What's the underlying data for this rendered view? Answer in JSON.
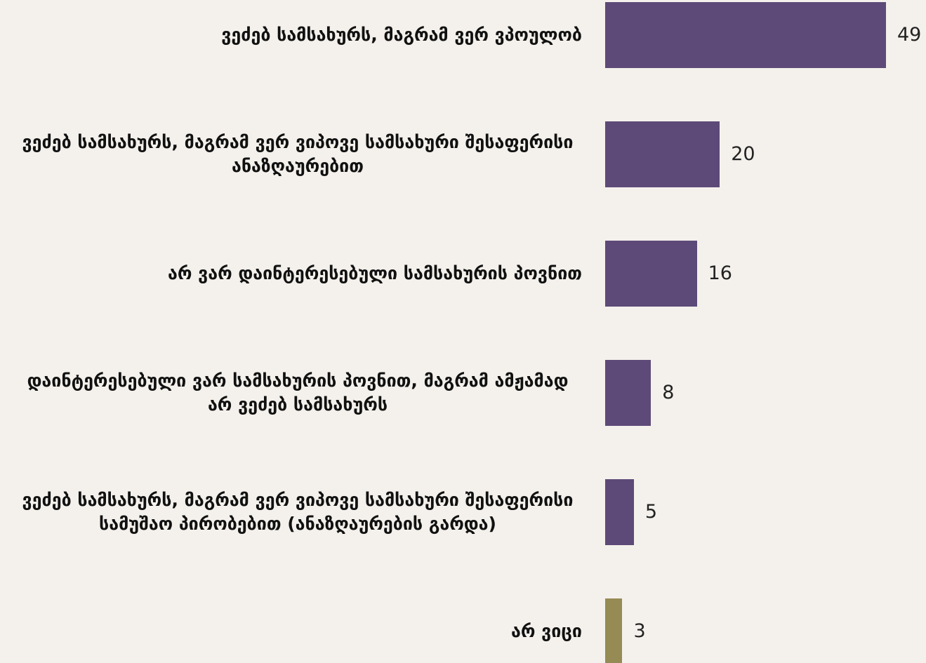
{
  "chart_data": {
    "type": "bar",
    "orientation": "horizontal",
    "categories": [
      "ვეძებ სამსახურს, მაგრამ ვერ ვპოულობ",
      "ვეძებ სამსახურს, მაგრამ ვერ ვიპოვე სამსახური შესაფერისი ანაზღაურებით",
      "არ ვარ დაინტერესებული სამსახურის პოვნით",
      "დაინტერესებული ვარ სამსახურის პოვნით, მაგრამ ამჟამად არ ვეძებ სამსახურს",
      "ვეძებ სამსახურს, მაგრამ ვერ ვიპოვე სამსახური შესაფერისი სამუშაო პირობებით (ანაზღაურების გარდა)",
      "არ ვიცი"
    ],
    "values": [
      49,
      20,
      16,
      8,
      5,
      3
    ],
    "colors": [
      "#5d4a78",
      "#5d4a78",
      "#5d4a78",
      "#5d4a78",
      "#5d4a78",
      "#968a55"
    ]
  }
}
